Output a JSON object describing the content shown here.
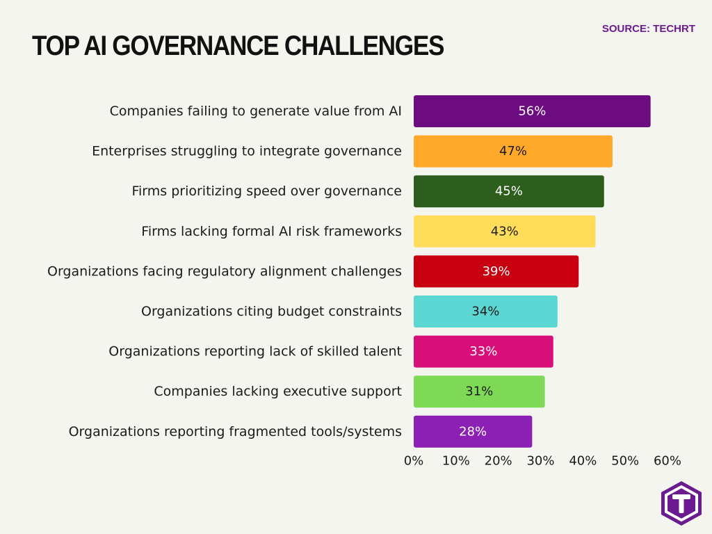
{
  "title": "TOP AI GOVERNANCE CHALLENGES",
  "source": "SOURCE: TECHRT",
  "chart_data": {
    "type": "bar",
    "orientation": "horizontal",
    "categories": [
      "Companies failing to generate value from AI",
      "Enterprises struggling to integrate governance",
      "Firms prioritizing speed over governance",
      "Firms lacking formal AI risk frameworks",
      "Organizations facing regulatory alignment challenges",
      "Organizations citing budget constraints",
      "Organizations reporting lack of skilled talent",
      "Companies lacking executive support",
      "Organizations reporting fragmented tools/systems"
    ],
    "values": [
      56,
      47,
      45,
      43,
      39,
      34,
      33,
      31,
      28
    ],
    "value_labels": [
      "56%",
      "47%",
      "45%",
      "43%",
      "39%",
      "34%",
      "33%",
      "31%",
      "28%"
    ],
    "colors": [
      "#6d0b80",
      "#ffa82a",
      "#2d5e1e",
      "#ffdc5a",
      "#c8000f",
      "#5cd6d2",
      "#d80f78",
      "#7ed957",
      "#8c1fb4"
    ],
    "label_colors": [
      "#ffffff",
      "#1a1a1a",
      "#ffffff",
      "#1a1a1a",
      "#ffffff",
      "#1a1a1a",
      "#ffffff",
      "#1a1a1a",
      "#ffffff"
    ],
    "xlim": [
      0,
      60
    ],
    "xticks": [
      0,
      10,
      20,
      30,
      40,
      50,
      60
    ],
    "xtick_labels": [
      "0%",
      "10%",
      "20%",
      "30%",
      "40%",
      "50%",
      "60%"
    ],
    "grid": false,
    "legend": "none"
  },
  "logo": {
    "icon": "t-hexagon-logo-icon",
    "color": "#6b1b8f"
  }
}
